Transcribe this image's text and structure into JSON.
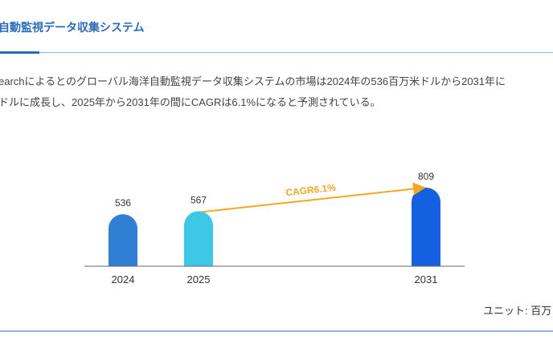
{
  "header": {
    "title": "自動監視データ収集システム"
  },
  "description": {
    "line1": "earchによるとのグローバル海洋自動監視データ収集システムの市場は2024年の536百万米ドルから2031年に",
    "line2": "ドルに成長し、2025年から2031年の間にCAGRは6.1%になると予測されている。"
  },
  "chart_data": {
    "type": "bar",
    "categories": [
      "2024",
      "2025",
      "2031"
    ],
    "values": [
      536,
      567,
      809
    ],
    "data_labels": [
      "536",
      "567",
      "809"
    ],
    "colors": [
      "#2f7fd4",
      "#3ec8e8",
      "#1560e0"
    ],
    "annotation": {
      "text": "CAGR6.1%",
      "from": "2025",
      "to": "2031",
      "color": "#f5a623"
    },
    "ylim": [
      0,
      809
    ],
    "grid": false
  },
  "footer": {
    "unit": "ユニット: 百万"
  }
}
